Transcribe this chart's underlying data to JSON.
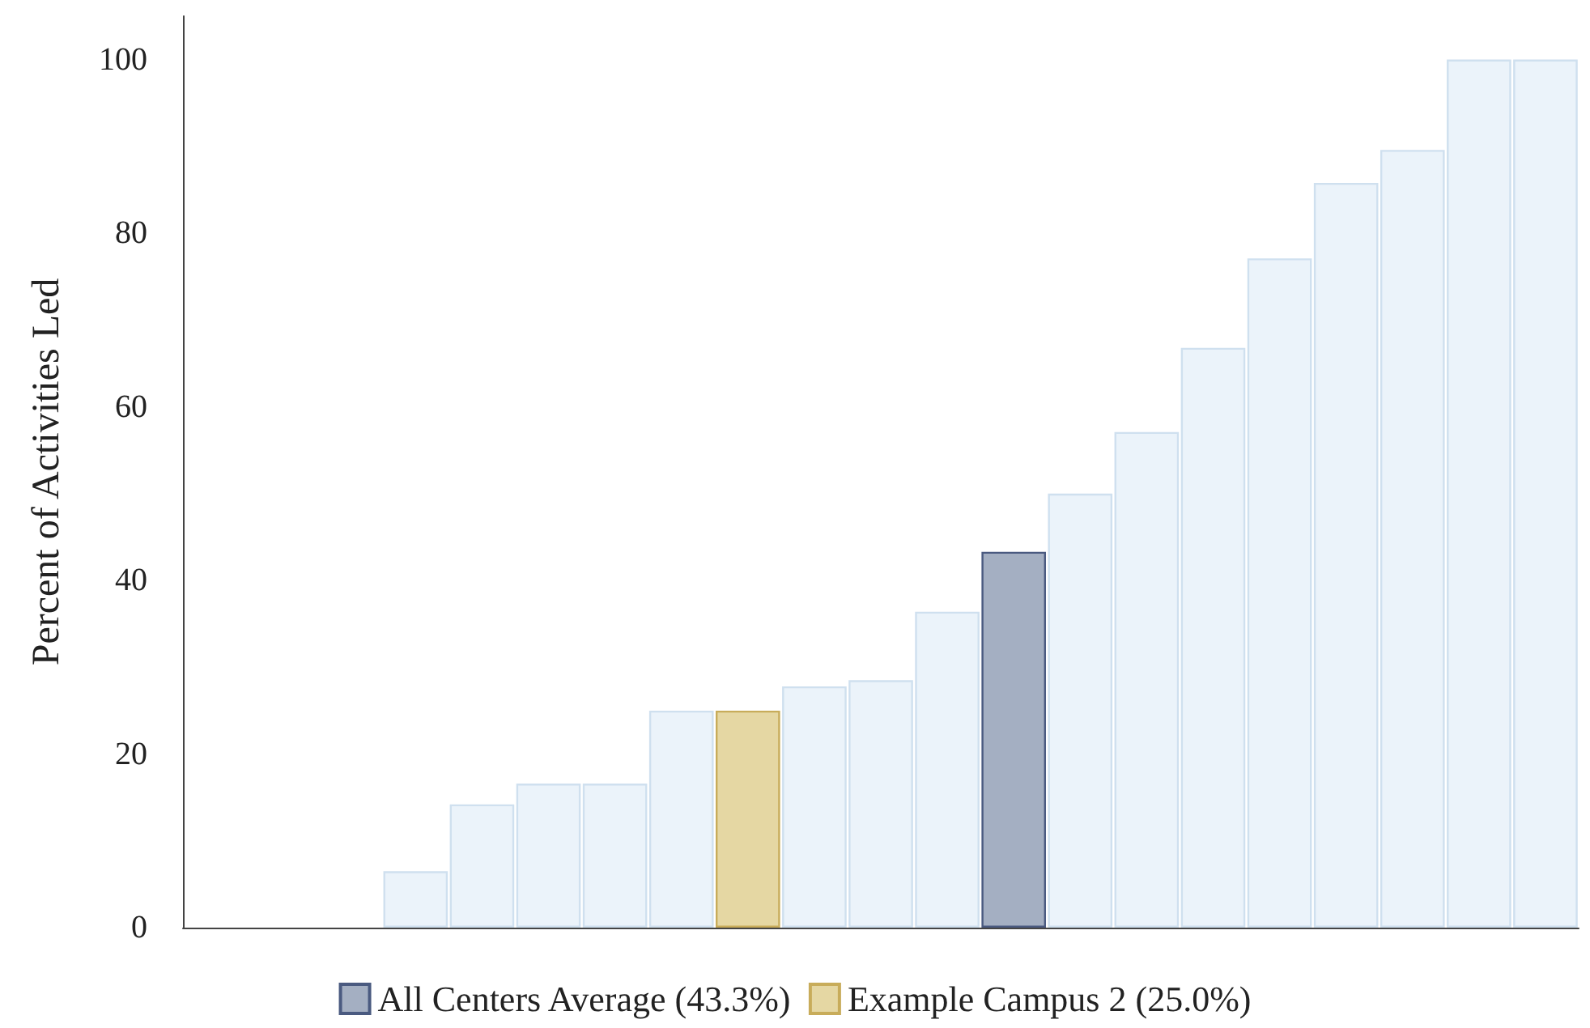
{
  "chart_data": {
    "type": "bar",
    "ylabel": "Percent of Activities Led",
    "categories": [
      null,
      null,
      null,
      null,
      null,
      null,
      null,
      null,
      null,
      null,
      null,
      null,
      null,
      null,
      null,
      null,
      null,
      null,
      null,
      null,
      null
    ],
    "series": [
      {
        "color": "#ebf3fa",
        "values": [
          null,
          null,
          null,
          6.5,
          14.2,
          16.6,
          16.6,
          25.0,
          null,
          27.8,
          28.5,
          36.4,
          null,
          50.0,
          57.1,
          66.8,
          77.1,
          85.8,
          89.6,
          100,
          100
        ]
      },
      {
        "name": "All Centers Average (43.3%)",
        "color": "#a4afc2",
        "values": [
          null,
          null,
          null,
          null,
          null,
          null,
          null,
          null,
          null,
          null,
          null,
          null,
          43.3,
          null,
          null,
          null,
          null,
          null,
          null,
          null,
          null
        ]
      },
      {
        "name": "Example Campus 2 (25.0%)",
        "color": "#e5d7a3",
        "values": [
          null,
          null,
          null,
          null,
          null,
          null,
          null,
          null,
          25.0,
          null,
          null,
          null,
          null,
          null,
          null,
          null,
          null,
          null,
          null,
          null,
          null
        ]
      }
    ],
    "ylim": [
      0,
      105
    ],
    "yticks": [
      0,
      20,
      40,
      60,
      80,
      100
    ],
    "grid": false,
    "legend": "bottom"
  }
}
